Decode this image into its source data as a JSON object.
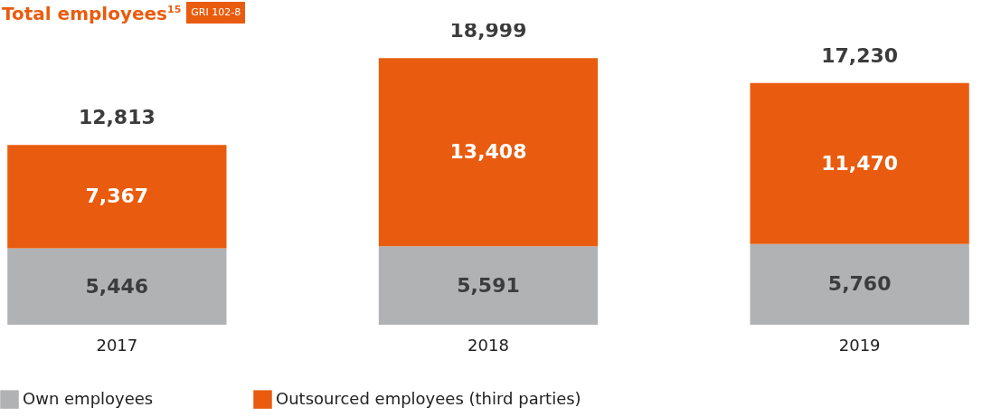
{
  "chart_data": {
    "type": "bar",
    "title": "Total employees$^{15}$",
    "annotations": [
      "GRI 102-8"
    ],
    "categories": [
      "2017",
      "2018",
      "2019"
    ],
    "stacked": true,
    "legend": "bottom",
    "totals": [
      "12,813",
      "18,999",
      "17,230"
    ],
    "series": [
      {
        "name": "Own employees",
        "color": "#b1b2b4",
        "values": [
          5446,
          5591,
          5760
        ],
        "value_labels": [
          "5,446",
          "5,591",
          "5,760"
        ]
      },
      {
        "name": "Outsourced employees (third parties)",
        "color": "#e95c0f",
        "values": [
          7367,
          13408,
          11470
        ],
        "value_labels": [
          "7,367",
          "13,408",
          "11,470"
        ]
      }
    ]
  }
}
